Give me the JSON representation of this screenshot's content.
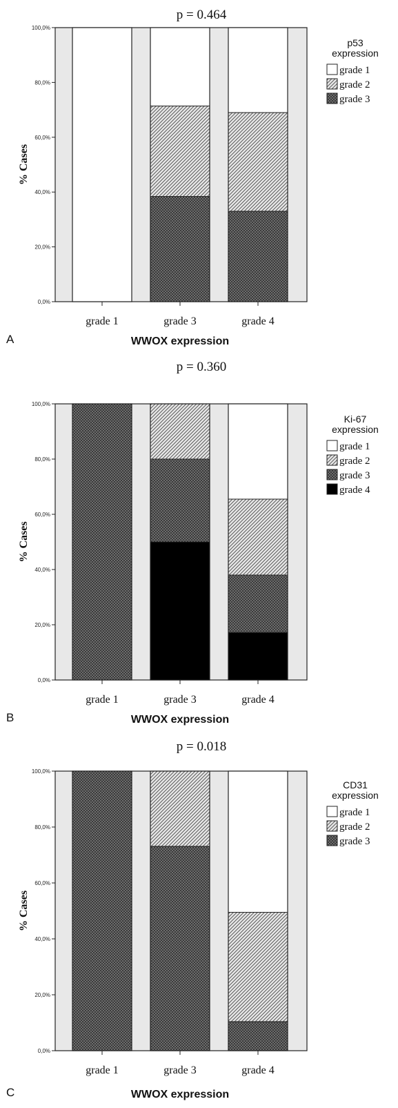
{
  "colors": {
    "plot_background": "#e8e8e8",
    "grade 1": "#ffffff",
    "grade 2": "hatch-diagonal-light-gray",
    "grade 3": "hatch-crosshatch-dark-gray",
    "grade 4": "#000000"
  },
  "chart_data": [
    {
      "type": "bar",
      "stacked": true,
      "panel_label": "A",
      "title": "p = 0.464",
      "xlabel": "WWOX expression",
      "ylabel": "% Cases",
      "ylim": [
        0,
        100
      ],
      "y_ticks": [
        "0,0%",
        "20,0%",
        "40,0%",
        "60,0%",
        "80,0%",
        "100,0%"
      ],
      "legend_title": [
        "p53",
        "expression"
      ],
      "legend_position": "right",
      "categories": [
        "grade 1",
        "grade 3",
        "grade 4"
      ],
      "series": [
        {
          "name": "grade 1",
          "values": [
            100,
            28.6,
            31.0
          ]
        },
        {
          "name": "grade 2",
          "values": [
            0,
            33.0,
            36.0
          ]
        },
        {
          "name": "grade 3",
          "values": [
            0,
            38.4,
            33.0
          ]
        }
      ]
    },
    {
      "type": "bar",
      "stacked": true,
      "panel_label": "B",
      "title": "p = 0.360",
      "xlabel": "WWOX expression",
      "ylabel": "% Cases",
      "ylim": [
        0,
        100
      ],
      "y_ticks": [
        "0,0%",
        "20,0%",
        "40,0%",
        "60,0%",
        "80,0%",
        "100,0%"
      ],
      "legend_title": [
        "Ki-67",
        "expression"
      ],
      "legend_position": "right",
      "categories": [
        "grade 1",
        "grade 3",
        "grade 4"
      ],
      "series": [
        {
          "name": "grade 1",
          "values": [
            0,
            0,
            34.5
          ]
        },
        {
          "name": "grade 2",
          "values": [
            0,
            20.0,
            27.5
          ]
        },
        {
          "name": "grade 3",
          "values": [
            100,
            30.0,
            20.8
          ]
        },
        {
          "name": "grade 4",
          "values": [
            0,
            50.0,
            17.2
          ]
        }
      ]
    },
    {
      "type": "bar",
      "stacked": true,
      "panel_label": "C",
      "title": "p = 0.018",
      "xlabel": "WWOX expression",
      "ylabel": "% Cases",
      "ylim": [
        0,
        100
      ],
      "y_ticks": [
        "0,0%",
        "20,0%",
        "40,0%",
        "60,0%",
        "80,0%",
        "100,0%"
      ],
      "legend_title": [
        "CD31",
        "expression"
      ],
      "legend_position": "right",
      "categories": [
        "grade 1",
        "grade 3",
        "grade 4"
      ],
      "series": [
        {
          "name": "grade 1",
          "values": [
            0,
            0,
            50.5
          ]
        },
        {
          "name": "grade 2",
          "values": [
            0,
            26.9,
            39.1
          ]
        },
        {
          "name": "grade 3",
          "values": [
            100,
            73.1,
            10.4
          ]
        }
      ]
    }
  ]
}
